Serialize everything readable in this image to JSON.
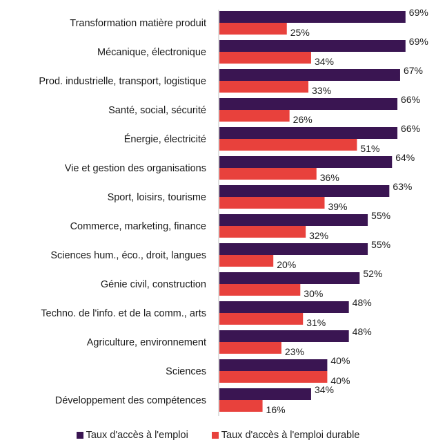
{
  "chart_data": {
    "type": "bar",
    "orientation": "horizontal",
    "categories": [
      "Transformation matière produit",
      "Mécanique, électronique",
      "Prod. industrielle, transport, logistique",
      "Santé, social, sécurité",
      "Énergie, électricité",
      "Vie et gestion des organisations",
      "Sport, loisirs, tourisme",
      "Commerce, marketing, finance",
      "Sciences hum., éco., droit, langues",
      "Génie civil, construction",
      "Techno. de l'info. et de la comm., arts",
      "Agriculture, environnement",
      "Sciences",
      "Développement des compétences"
    ],
    "series": [
      {
        "name": "Taux d'accès à l'emploi",
        "color": "#3a1552",
        "values": [
          69,
          69,
          67,
          66,
          66,
          64,
          63,
          55,
          55,
          52,
          48,
          48,
          40,
          34
        ],
        "labels": [
          "69%",
          "69%",
          "67%",
          "66%",
          "66%",
          "64%",
          "63%",
          "55%",
          "55%",
          "52%",
          "48%",
          "48%",
          "40%",
          "34%"
        ]
      },
      {
        "name": "Taux d'accès à l'emploi durable",
        "color": "#e8413c",
        "values": [
          25,
          34,
          33,
          26,
          51,
          36,
          39,
          32,
          20,
          30,
          31,
          23,
          40,
          16
        ],
        "labels": [
          "25%",
          "34%",
          "33%",
          "26%",
          "51%",
          "36%",
          "39%",
          "32%",
          "20%",
          "30%",
          "31%",
          "23%",
          "40%",
          "16%"
        ]
      }
    ],
    "xlim": [
      0,
      100
    ],
    "grid": false,
    "legend_position": "bottom"
  }
}
